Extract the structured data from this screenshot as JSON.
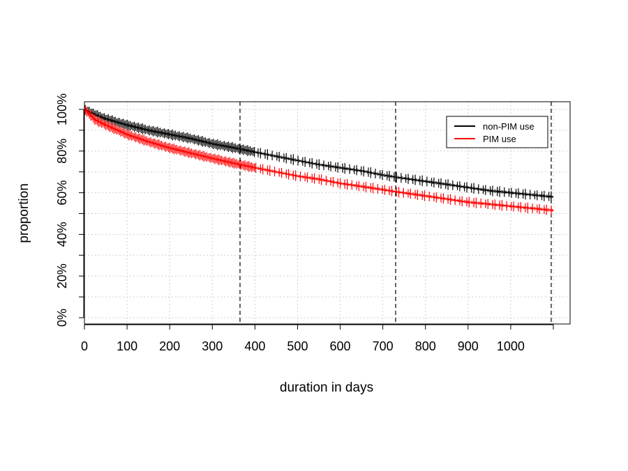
{
  "chart_data": {
    "type": "line",
    "title": "",
    "xlabel": "duration in days",
    "ylabel": "proportion",
    "xlim": [
      0,
      1100
    ],
    "ylim": [
      0,
      1
    ],
    "x_ticks": [
      0,
      100,
      200,
      300,
      400,
      500,
      600,
      700,
      800,
      900,
      1000
    ],
    "x_tick_labels": [
      "0",
      "100",
      "200",
      "300",
      "400",
      "500",
      "600",
      "700",
      "800",
      "900",
      "1000"
    ],
    "y_ticks": [
      0,
      0.2,
      0.4,
      0.6,
      0.8,
      1.0
    ],
    "y_tick_labels": [
      "0%",
      "20%",
      "40%",
      "60%",
      "80%",
      "100%"
    ],
    "grid": true,
    "reference_lines_x": [
      365,
      730,
      1095
    ],
    "legend": {
      "position": "top-right",
      "entries": [
        "non-PIM use",
        "PIM use"
      ]
    },
    "series": [
      {
        "name": "non-PIM use",
        "color": "#000000",
        "x": [
          0,
          25,
          50,
          100,
          150,
          200,
          250,
          300,
          365,
          400,
          450,
          500,
          550,
          600,
          650,
          700,
          730,
          800,
          850,
          900,
          950,
          1000,
          1050,
          1100
        ],
        "y": [
          1.0,
          0.975,
          0.955,
          0.925,
          0.9,
          0.88,
          0.86,
          0.835,
          0.81,
          0.795,
          0.775,
          0.755,
          0.735,
          0.72,
          0.705,
          0.685,
          0.675,
          0.655,
          0.64,
          0.625,
          0.61,
          0.6,
          0.59,
          0.58
        ]
      },
      {
        "name": "PIM use",
        "color": "#ff0000",
        "x": [
          0,
          25,
          50,
          100,
          150,
          200,
          250,
          300,
          365,
          400,
          450,
          500,
          550,
          600,
          650,
          700,
          730,
          800,
          850,
          900,
          950,
          1000,
          1050,
          1100
        ],
        "y": [
          1.0,
          0.95,
          0.925,
          0.88,
          0.845,
          0.815,
          0.79,
          0.765,
          0.735,
          0.72,
          0.7,
          0.68,
          0.665,
          0.645,
          0.63,
          0.615,
          0.605,
          0.585,
          0.57,
          0.555,
          0.545,
          0.535,
          0.525,
          0.515
        ]
      }
    ]
  }
}
